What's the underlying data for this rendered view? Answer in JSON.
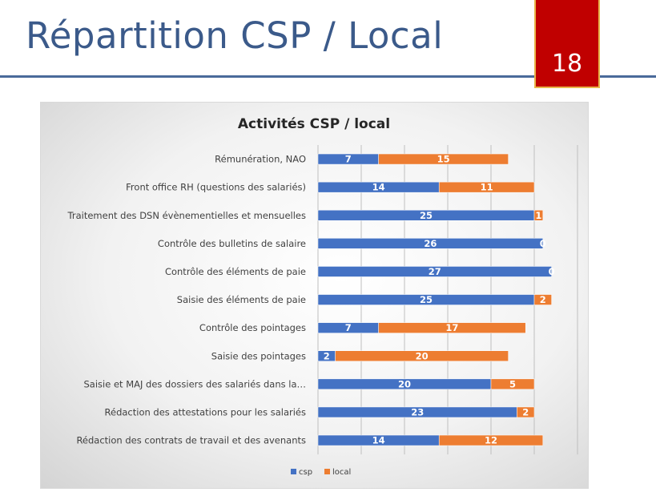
{
  "slide": {
    "title": "Répartition CSP / Local",
    "page_number": "18"
  },
  "chart_data": {
    "type": "bar",
    "orientation": "horizontal",
    "stacked": true,
    "title": "Activités CSP / local",
    "categories": [
      "Rémunération, NAO",
      "Front office RH (questions des salariés)",
      "Traitement des DSN évènementielles et mensuelles",
      "Contrôle des bulletins de salaire",
      "Contrôle des éléments de paie",
      "Saisie des éléments de paie",
      "Contrôle des pointages",
      "Saisie des pointages",
      "Saisie et MAJ des dossiers des salariés dans la…",
      "Rédaction des attestations pour les salariés",
      "Rédaction des contrats de travail et des avenants"
    ],
    "series": [
      {
        "name": "csp",
        "color": "#4472c4",
        "values": [
          7,
          14,
          25,
          26,
          27,
          25,
          7,
          2,
          20,
          23,
          14
        ]
      },
      {
        "name": "local",
        "color": "#ed7d31",
        "values": [
          15,
          11,
          1,
          0,
          0,
          2,
          17,
          20,
          5,
          2,
          12
        ]
      }
    ],
    "xlim": [
      0,
      30
    ],
    "grid": true,
    "data_labels": true,
    "legend_position": "bottom"
  }
}
